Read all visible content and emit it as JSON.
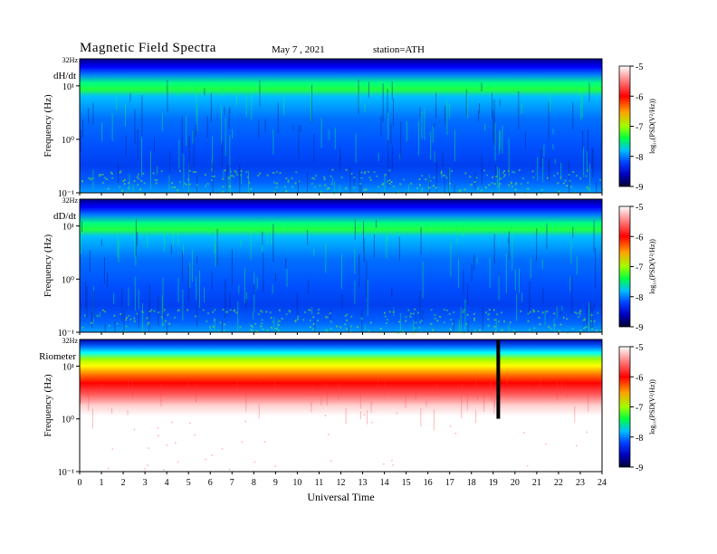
{
  "header": {
    "title": "Magnetic Field Spectra",
    "date": "May 7  , 2021",
    "station": "station=ATH"
  },
  "colors": {
    "colormap": [
      "#000040",
      "#0000ff",
      "#00a0ff",
      "#00ffa0",
      "#00ff00",
      "#a0ff00",
      "#ffff00",
      "#ff8000",
      "#ff0000",
      "#ffffff"
    ]
  },
  "chart_data": [
    {
      "type": "heatmap",
      "panel_label": "dH/dt",
      "top_tick": "32Hz",
      "ylabel": "Frequency (Hz)",
      "yscale": "log",
      "ylim": [
        0.1,
        32
      ],
      "yticks": [
        "10⁻¹",
        "10⁰",
        "10¹"
      ],
      "xlim": [
        0,
        24
      ],
      "colorbar": {
        "label": "log₁₀(PSD(V²/Hz))",
        "range": [
          -9,
          -5
        ],
        "ticks": [
          "-5",
          "-6",
          "-7",
          "-8",
          "-9"
        ]
      }
    },
    {
      "type": "heatmap",
      "panel_label": "dD/dt",
      "top_tick": "32Hz",
      "ylabel": "Frequency (Hz)",
      "yscale": "log",
      "ylim": [
        0.1,
        32
      ],
      "yticks": [
        "10⁻¹",
        "10⁰",
        "10¹"
      ],
      "xlim": [
        0,
        24
      ],
      "colorbar": {
        "label": "log₁₀(PSD(V²/Hz))",
        "range": [
          -9,
          -5
        ],
        "ticks": [
          "-5",
          "-6",
          "-7",
          "-8",
          "-9"
        ]
      }
    },
    {
      "type": "heatmap",
      "panel_label": "Riometer",
      "top_tick": "32Hz",
      "ylabel": "Frequency (Hz)",
      "yscale": "log",
      "ylim": [
        0.1,
        32
      ],
      "yticks": [
        "10⁻¹",
        "10⁰",
        "10¹"
      ],
      "xlim": [
        0,
        24
      ],
      "xlabel": "Universal Time",
      "xticks": [
        "0",
        "1",
        "2",
        "3",
        "4",
        "5",
        "6",
        "7",
        "8",
        "9",
        "10",
        "11",
        "12",
        "13",
        "14",
        "15",
        "16",
        "17",
        "18",
        "19",
        "20",
        "21",
        "22",
        "23",
        "24"
      ],
      "colorbar": {
        "label": "log₁₀(PSD(V²/Hz))",
        "range": [
          -9,
          -5
        ],
        "ticks": [
          "-5",
          "-6",
          "-7",
          "-8",
          "-9"
        ]
      }
    }
  ]
}
